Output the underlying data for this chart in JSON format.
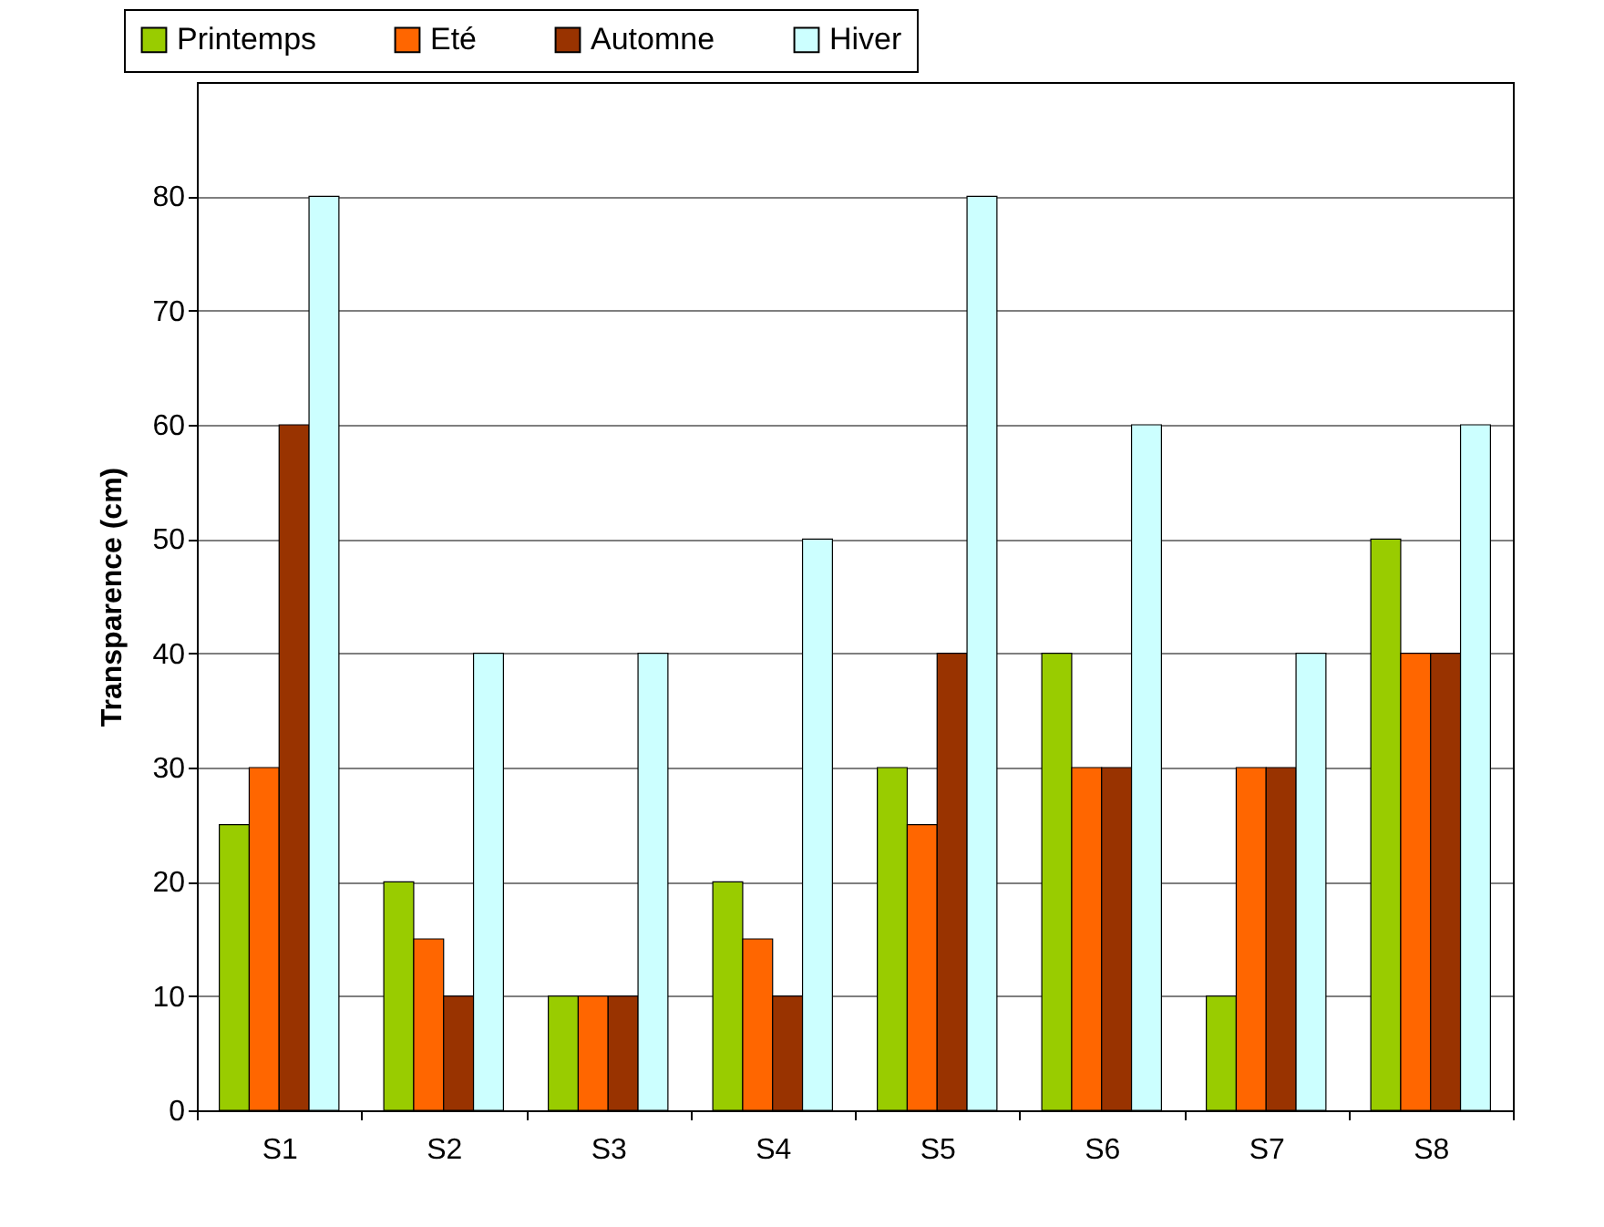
{
  "chart_data": {
    "type": "bar",
    "ylabel": "Transparence (cm)",
    "categories": [
      "S1",
      "S2",
      "S3",
      "S4",
      "S5",
      "S6",
      "S7",
      "S8"
    ],
    "series": [
      {
        "name": "Printemps",
        "color": "#99cc00",
        "values": [
          25,
          20,
          10,
          20,
          30,
          40,
          10,
          50
        ]
      },
      {
        "name": "Eté",
        "color": "#ff6600",
        "values": [
          30,
          15,
          10,
          15,
          25,
          30,
          30,
          40
        ]
      },
      {
        "name": "Automne",
        "color": "#993300",
        "values": [
          60,
          10,
          10,
          10,
          40,
          30,
          30,
          40
        ]
      },
      {
        "name": "Hiver",
        "color": "#ccffff",
        "values": [
          80,
          40,
          40,
          50,
          80,
          60,
          40,
          60
        ]
      }
    ],
    "ylim": [
      0,
      90
    ],
    "yticks": [
      0,
      10,
      20,
      30,
      40,
      50,
      60,
      70,
      80
    ],
    "grid": "y",
    "legend": "top left"
  }
}
